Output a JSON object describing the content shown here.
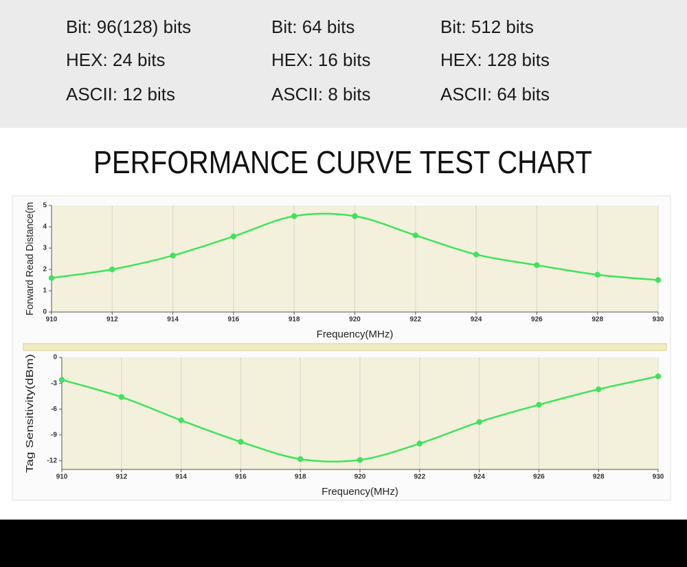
{
  "specs": [
    [
      "Bit: 96(128) bits",
      "HEX: 24 bits",
      "ASCII: 12 bits"
    ],
    [
      "Bit: 64 bits",
      "HEX: 16 bits",
      "ASCII: 8 bits"
    ],
    [
      "Bit: 512 bits",
      "HEX: 128 bits",
      "ASCII: 64 bits"
    ]
  ],
  "heading": "PERFORMANCE CURVE TEST CHART",
  "chart_data": [
    {
      "type": "line",
      "x_label": "Frequency(MHz)",
      "y_label": "Forward Read Distance(m",
      "x": [
        910,
        912,
        914,
        916,
        918,
        920,
        922,
        924,
        926,
        928,
        930
      ],
      "series": [
        {
          "color": "#3fe35c",
          "values": [
            1.6,
            2.0,
            2.65,
            3.55,
            4.5,
            4.5,
            3.6,
            2.7,
            2.2,
            1.75,
            1.5
          ]
        }
      ],
      "xlim": [
        910,
        930
      ],
      "xticks": [
        910,
        912,
        914,
        916,
        918,
        920,
        922,
        924,
        926,
        928,
        930
      ],
      "ylim": [
        0,
        5
      ],
      "yticks": [
        0,
        1,
        2,
        3,
        4,
        5
      ],
      "grid": "x"
    },
    {
      "type": "line",
      "x_label": "Frequency(MHz)",
      "y_label": "Tag Sensitivity(dBm)",
      "x": [
        910,
        912,
        914,
        916,
        918,
        920,
        922,
        924,
        926,
        928,
        930
      ],
      "series": [
        {
          "color": "#3fe35c",
          "values": [
            -2.6,
            -4.6,
            -7.3,
            -9.8,
            -11.8,
            -11.9,
            -10.0,
            -7.5,
            -5.5,
            -3.7,
            -2.2
          ]
        }
      ],
      "xlim": [
        910,
        930
      ],
      "xticks": [
        910,
        912,
        914,
        916,
        918,
        920,
        922,
        924,
        926,
        928,
        930
      ],
      "ylim": [
        -13,
        0
      ],
      "yticks": [
        0,
        -3,
        -6,
        -9,
        -12
      ],
      "grid": "x"
    }
  ]
}
